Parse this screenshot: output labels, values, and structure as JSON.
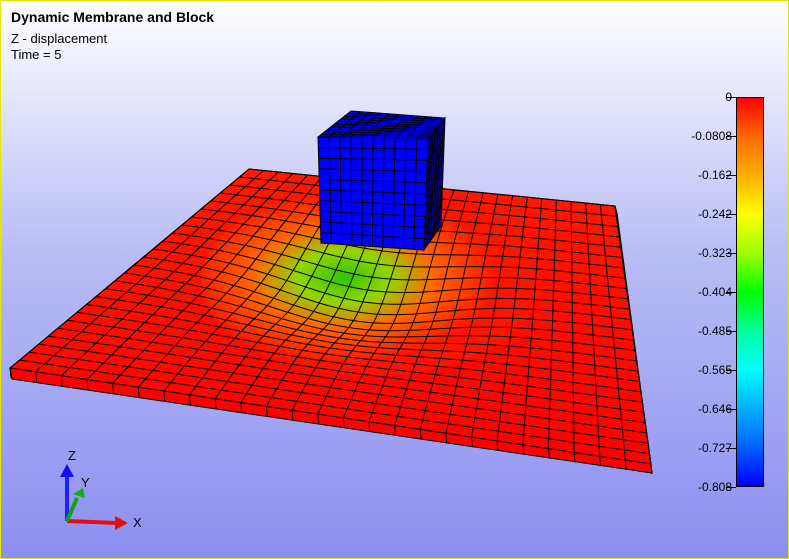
{
  "viewer": {
    "title": "Dynamic Membrane and Block",
    "variable": "Z - displacement",
    "time": "Time = 5"
  },
  "legend": {
    "labels": [
      "0",
      "-0.0808",
      "-0.162",
      "-0.242",
      "-0.323",
      "-0.404",
      "-0.485",
      "-0.565",
      "-0.646",
      "-0.727",
      "-0.808"
    ],
    "colors": [
      "#ff0000",
      "#ff6a00",
      "#ffb000",
      "#ffff00",
      "#9cff00",
      "#00ff00",
      "#00ff9c",
      "#00ffff",
      "#00b0ff",
      "#0060ff",
      "#0000ff"
    ]
  },
  "axes": {
    "x": "X",
    "y": "Y",
    "z": "Z"
  },
  "colors": {
    "membrane_high": "#ff0000",
    "membrane_low": "#00ff00",
    "block": "#0000ff",
    "background_top": "#ffffff",
    "background_bottom": "#8c8ff0"
  }
}
